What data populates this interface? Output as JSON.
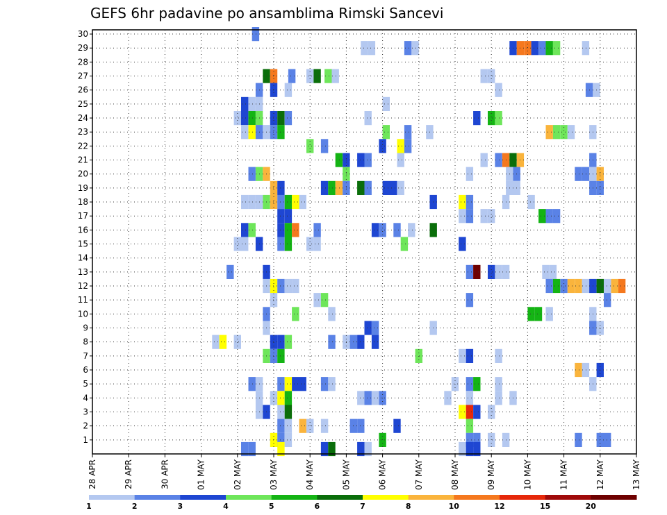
{
  "chart_data": {
    "type": "heatmap",
    "title": "GEFS 6hr padavine po ansamblima Rimski Sancevi",
    "x_ticks": [
      "28 APR",
      "29 APR",
      "30 APR",
      "01 MAY",
      "02 MAY",
      "03 MAY",
      "04 MAY",
      "05 MAY",
      "06 MAY",
      "07 MAY",
      "08 MAY",
      "09 MAY",
      "10 MAY",
      "11 MAY",
      "12 MAY",
      "13 MAY"
    ],
    "y_ticks": [
      1,
      2,
      3,
      4,
      5,
      6,
      7,
      8,
      9,
      10,
      11,
      12,
      13,
      14,
      15,
      16,
      17,
      18,
      19,
      20,
      21,
      22,
      23,
      24,
      25,
      26,
      27,
      28,
      29,
      30
    ],
    "colorbar": {
      "labels": [
        "1",
        "2",
        "3",
        "4",
        "5",
        "6",
        "7",
        "8",
        "10",
        "12",
        "15",
        "20"
      ],
      "colors": [
        "#b4c8f0",
        "#5a82e6",
        "#1e46d2",
        "#6ee65a",
        "#14b414",
        "#0a6e0a",
        "#ffff00",
        "#fab43c",
        "#f5781e",
        "#e6280a",
        "#a00a0a",
        "#6e0000"
      ]
    },
    "grid": true,
    "cells": [
      [
        4.5,
        30,
        1
      ],
      [
        7.5,
        29,
        0
      ],
      [
        7.7,
        29,
        0
      ],
      [
        8.7,
        29,
        1
      ],
      [
        8.9,
        29,
        0
      ],
      [
        11.6,
        29,
        2
      ],
      [
        11.8,
        29,
        8
      ],
      [
        12.0,
        29,
        8
      ],
      [
        12.2,
        29,
        2
      ],
      [
        12.4,
        29,
        1
      ],
      [
        12.6,
        29,
        4
      ],
      [
        12.8,
        29,
        3
      ],
      [
        13.6,
        29,
        0
      ],
      [
        4.8,
        27,
        5
      ],
      [
        5.0,
        27,
        8
      ],
      [
        5.5,
        27,
        1
      ],
      [
        6.0,
        27,
        0
      ],
      [
        6.2,
        27,
        5
      ],
      [
        6.5,
        27,
        3
      ],
      [
        6.7,
        27,
        0
      ],
      [
        10.8,
        27,
        0
      ],
      [
        11.0,
        27,
        0
      ],
      [
        4.6,
        26,
        1
      ],
      [
        5.0,
        26,
        2
      ],
      [
        5.4,
        26,
        0
      ],
      [
        11.2,
        26,
        0
      ],
      [
        13.7,
        26,
        1
      ],
      [
        13.9,
        26,
        0
      ],
      [
        4.2,
        25,
        2
      ],
      [
        4.4,
        25,
        0
      ],
      [
        4.6,
        25,
        0
      ],
      [
        8.1,
        25,
        0
      ],
      [
        4.0,
        24,
        0
      ],
      [
        4.2,
        24,
        2
      ],
      [
        4.4,
        24,
        4
      ],
      [
        4.6,
        24,
        3
      ],
      [
        5.0,
        24,
        2
      ],
      [
        5.2,
        24,
        5
      ],
      [
        5.4,
        24,
        1
      ],
      [
        7.6,
        24,
        0
      ],
      [
        10.6,
        24,
        2
      ],
      [
        11.0,
        24,
        4
      ],
      [
        11.2,
        24,
        3
      ],
      [
        4.2,
        23,
        0
      ],
      [
        4.4,
        23,
        6
      ],
      [
        4.6,
        23,
        1
      ],
      [
        4.8,
        23,
        0
      ],
      [
        5.0,
        23,
        1
      ],
      [
        5.2,
        23,
        4
      ],
      [
        8.1,
        23,
        3
      ],
      [
        8.7,
        23,
        1
      ],
      [
        9.3,
        23,
        0
      ],
      [
        12.6,
        23,
        7
      ],
      [
        12.8,
        23,
        3
      ],
      [
        13.0,
        23,
        3
      ],
      [
        13.2,
        23,
        0
      ],
      [
        13.8,
        23,
        0
      ],
      [
        6.0,
        22,
        3
      ],
      [
        6.4,
        22,
        1
      ],
      [
        8.0,
        22,
        2
      ],
      [
        8.5,
        22,
        6
      ],
      [
        8.7,
        22,
        1
      ],
      [
        6.8,
        21,
        4
      ],
      [
        7.0,
        21,
        2
      ],
      [
        7.4,
        21,
        2
      ],
      [
        7.6,
        21,
        1
      ],
      [
        8.5,
        21,
        0
      ],
      [
        10.8,
        21,
        0
      ],
      [
        11.2,
        21,
        1
      ],
      [
        11.4,
        21,
        8
      ],
      [
        11.6,
        21,
        5
      ],
      [
        11.8,
        21,
        7
      ],
      [
        13.8,
        21,
        1
      ],
      [
        4.4,
        20,
        1
      ],
      [
        4.6,
        20,
        3
      ],
      [
        4.8,
        20,
        7
      ],
      [
        7.0,
        20,
        3
      ],
      [
        10.4,
        20,
        0
      ],
      [
        11.5,
        20,
        0
      ],
      [
        11.7,
        20,
        1
      ],
      [
        13.4,
        20,
        1
      ],
      [
        13.6,
        20,
        1
      ],
      [
        13.8,
        20,
        0
      ],
      [
        14.0,
        20,
        7
      ],
      [
        7.0,
        19,
        0
      ],
      [
        11.5,
        19,
        0
      ],
      [
        11.7,
        19,
        0
      ],
      [
        13.8,
        19,
        1
      ],
      [
        14.0,
        19,
        1
      ],
      [
        5.0,
        19,
        7
      ],
      [
        5.2,
        19,
        2
      ],
      [
        6.4,
        19,
        2
      ],
      [
        6.6,
        19,
        4
      ],
      [
        6.8,
        19,
        7
      ],
      [
        7.0,
        19,
        1
      ],
      [
        7.4,
        19,
        5
      ],
      [
        7.6,
        19,
        1
      ],
      [
        8.1,
        19,
        2
      ],
      [
        8.3,
        19,
        2
      ],
      [
        8.5,
        19,
        0
      ],
      [
        4.2,
        18,
        0
      ],
      [
        4.4,
        18,
        0
      ],
      [
        4.6,
        18,
        0
      ],
      [
        4.8,
        18,
        3
      ],
      [
        5.0,
        18,
        7
      ],
      [
        5.2,
        18,
        1
      ],
      [
        5.4,
        18,
        4
      ],
      [
        5.6,
        18,
        6
      ],
      [
        5.8,
        18,
        0
      ],
      [
        9.4,
        18,
        2
      ],
      [
        10.2,
        18,
        6
      ],
      [
        10.4,
        18,
        1
      ],
      [
        11.4,
        18,
        0
      ],
      [
        12.1,
        18,
        0
      ],
      [
        5.2,
        17,
        2
      ],
      [
        5.4,
        17,
        2
      ],
      [
        10.2,
        17,
        0
      ],
      [
        10.4,
        17,
        1
      ],
      [
        10.8,
        17,
        0
      ],
      [
        11.0,
        17,
        0
      ],
      [
        12.4,
        17,
        4
      ],
      [
        12.6,
        17,
        1
      ],
      [
        12.8,
        17,
        1
      ],
      [
        4.2,
        16,
        2
      ],
      [
        4.4,
        16,
        3
      ],
      [
        5.2,
        16,
        2
      ],
      [
        5.4,
        16,
        4
      ],
      [
        5.6,
        16,
        8
      ],
      [
        6.2,
        16,
        1
      ],
      [
        7.8,
        16,
        2
      ],
      [
        8.0,
        16,
        1
      ],
      [
        8.4,
        16,
        1
      ],
      [
        8.8,
        16,
        0
      ],
      [
        9.4,
        16,
        5
      ],
      [
        4.0,
        15,
        0
      ],
      [
        4.2,
        15,
        0
      ],
      [
        4.6,
        15,
        2
      ],
      [
        5.2,
        15,
        1
      ],
      [
        5.4,
        15,
        4
      ],
      [
        6.0,
        15,
        0
      ],
      [
        6.2,
        15,
        0
      ],
      [
        8.6,
        15,
        3
      ],
      [
        10.2,
        15,
        2
      ],
      [
        3.8,
        13,
        1
      ],
      [
        4.8,
        13,
        2
      ],
      [
        10.4,
        13,
        1
      ],
      [
        10.6,
        13,
        11
      ],
      [
        11.0,
        13,
        2
      ],
      [
        11.2,
        13,
        0
      ],
      [
        11.4,
        13,
        0
      ],
      [
        12.5,
        13,
        0
      ],
      [
        12.7,
        13,
        0
      ],
      [
        4.8,
        12,
        0
      ],
      [
        5.0,
        12,
        6
      ],
      [
        5.2,
        12,
        1
      ],
      [
        5.4,
        12,
        0
      ],
      [
        5.6,
        12,
        0
      ],
      [
        12.6,
        12,
        1
      ],
      [
        12.8,
        12,
        4
      ],
      [
        13.0,
        12,
        1
      ],
      [
        13.2,
        12,
        7
      ],
      [
        13.4,
        12,
        7
      ],
      [
        13.6,
        12,
        0
      ],
      [
        13.8,
        12,
        2
      ],
      [
        14.0,
        12,
        5
      ],
      [
        14.2,
        12,
        0
      ],
      [
        14.4,
        12,
        7
      ],
      [
        14.6,
        12,
        8
      ],
      [
        5.0,
        11,
        0
      ],
      [
        6.2,
        11,
        0
      ],
      [
        6.4,
        11,
        3
      ],
      [
        10.4,
        11,
        1
      ],
      [
        14.2,
        11,
        1
      ],
      [
        4.8,
        10,
        1
      ],
      [
        5.6,
        10,
        3
      ],
      [
        6.6,
        10,
        0
      ],
      [
        12.1,
        10,
        4
      ],
      [
        12.3,
        10,
        4
      ],
      [
        12.6,
        10,
        0
      ],
      [
        13.8,
        10,
        0
      ],
      [
        4.8,
        9,
        0
      ],
      [
        7.6,
        9,
        2
      ],
      [
        7.8,
        9,
        1
      ],
      [
        9.4,
        9,
        0
      ],
      [
        13.8,
        9,
        1
      ],
      [
        14.0,
        9,
        0
      ],
      [
        3.4,
        8,
        0
      ],
      [
        3.6,
        8,
        6
      ],
      [
        4.0,
        8,
        0
      ],
      [
        5.0,
        8,
        2
      ],
      [
        5.2,
        8,
        2
      ],
      [
        5.4,
        8,
        3
      ],
      [
        6.6,
        8,
        1
      ],
      [
        7.0,
        8,
        0
      ],
      [
        7.2,
        8,
        1
      ],
      [
        7.4,
        8,
        2
      ],
      [
        7.8,
        8,
        2
      ],
      [
        4.8,
        7,
        3
      ],
      [
        5.0,
        7,
        1
      ],
      [
        5.2,
        7,
        4
      ],
      [
        9.0,
        7,
        3
      ],
      [
        10.2,
        7,
        0
      ],
      [
        10.4,
        7,
        2
      ],
      [
        11.2,
        7,
        0
      ],
      [
        13.4,
        6,
        7
      ],
      [
        13.6,
        6,
        0
      ],
      [
        14.0,
        6,
        2
      ],
      [
        4.4,
        5,
        1
      ],
      [
        4.6,
        5,
        0
      ],
      [
        5.2,
        5,
        1
      ],
      [
        5.4,
        5,
        6
      ],
      [
        5.6,
        5,
        2
      ],
      [
        5.8,
        5,
        2
      ],
      [
        6.4,
        5,
        1
      ],
      [
        6.6,
        5,
        0
      ],
      [
        10.0,
        5,
        0
      ],
      [
        10.4,
        5,
        1
      ],
      [
        10.6,
        5,
        4
      ],
      [
        11.2,
        5,
        0
      ],
      [
        13.8,
        5,
        0
      ],
      [
        4.6,
        4,
        0
      ],
      [
        5.0,
        4,
        0
      ],
      [
        5.2,
        4,
        6
      ],
      [
        5.4,
        4,
        4
      ],
      [
        7.4,
        4,
        0
      ],
      [
        7.6,
        4,
        1
      ],
      [
        7.8,
        4,
        0
      ],
      [
        8.0,
        4,
        1
      ],
      [
        9.8,
        4,
        0
      ],
      [
        10.4,
        4,
        0
      ],
      [
        11.2,
        4,
        0
      ],
      [
        11.6,
        4,
        0
      ],
      [
        4.6,
        3,
        0
      ],
      [
        4.8,
        3,
        2
      ],
      [
        5.2,
        3,
        0
      ],
      [
        5.4,
        3,
        5
      ],
      [
        10.2,
        3,
        6
      ],
      [
        10.4,
        3,
        9
      ],
      [
        10.6,
        3,
        2
      ],
      [
        11.0,
        3,
        0
      ],
      [
        5.2,
        2,
        1
      ],
      [
        5.4,
        2,
        0
      ],
      [
        5.8,
        2,
        7
      ],
      [
        6.0,
        2,
        0
      ],
      [
        6.4,
        2,
        0
      ],
      [
        7.2,
        2,
        1
      ],
      [
        7.4,
        2,
        1
      ],
      [
        8.4,
        2,
        2
      ],
      [
        10.4,
        2,
        3
      ],
      [
        5.0,
        1,
        6
      ],
      [
        5.2,
        1,
        1
      ],
      [
        5.4,
        1,
        0
      ],
      [
        8.0,
        1,
        4
      ],
      [
        10.4,
        1,
        1
      ],
      [
        10.6,
        1,
        1
      ],
      [
        11.0,
        1,
        0
      ],
      [
        11.4,
        1,
        0
      ],
      [
        13.4,
        1,
        1
      ],
      [
        14.0,
        1,
        1
      ],
      [
        14.2,
        1,
        1
      ],
      [
        4.2,
        0.35,
        1
      ],
      [
        4.4,
        0.35,
        1
      ],
      [
        5.2,
        0.35,
        6
      ],
      [
        6.4,
        0.35,
        2
      ],
      [
        6.6,
        0.35,
        5
      ],
      [
        7.4,
        0.35,
        2
      ],
      [
        7.6,
        0.35,
        0
      ],
      [
        10.2,
        0.35,
        0
      ],
      [
        10.4,
        0.35,
        2
      ],
      [
        10.6,
        0.35,
        2
      ]
    ]
  }
}
